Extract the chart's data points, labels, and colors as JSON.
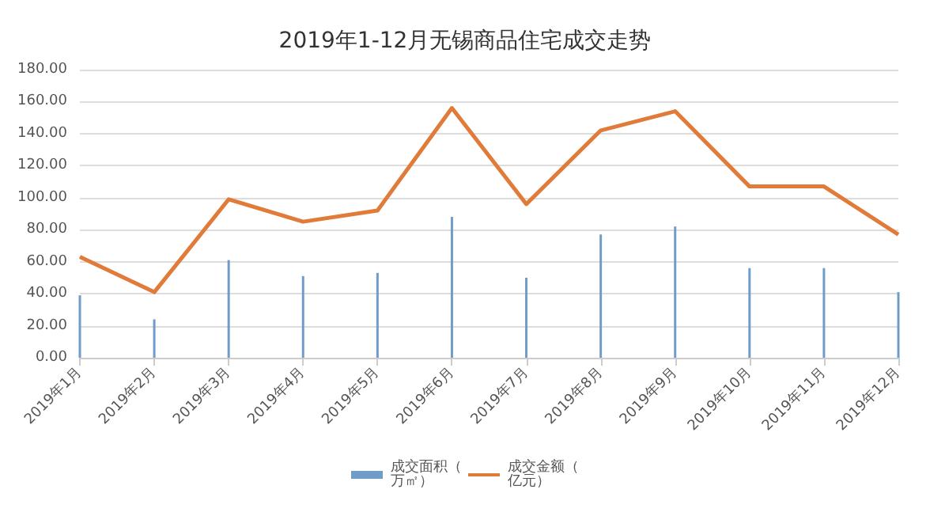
{
  "chart_data": {
    "type": "bar",
    "title": "2019年1-12月无锡商品住宅成交走势",
    "categories": [
      "2019年1月",
      "2019年2月",
      "2019年3月",
      "2019年4月",
      "2019年5月",
      "2019年6月",
      "2019年7月",
      "2019年8月",
      "2019年9月",
      "2019年10月",
      "2019年11月",
      "2019年12月"
    ],
    "series": [
      {
        "name": "成交面积（万㎡）",
        "color": "#6f9cc9",
        "values": [
          39,
          24,
          61,
          51,
          53,
          88,
          50,
          77,
          82,
          56,
          56,
          41
        ]
      },
      {
        "name": "成交金额（亿元）",
        "type": "line",
        "color": "#e07b39",
        "values": [
          63,
          41,
          99,
          85,
          92,
          156,
          96,
          142,
          154,
          107,
          107,
          77
        ]
      }
    ],
    "ylim": [
      0,
      180
    ],
    "yticks": [
      {
        "value": 0,
        "label": "0.00"
      },
      {
        "value": 20,
        "label": "20.00"
      },
      {
        "value": 40,
        "label": "40.00"
      },
      {
        "value": 60,
        "label": "60.00"
      },
      {
        "value": 80,
        "label": "80.00"
      },
      {
        "value": 100,
        "label": "100.00"
      },
      {
        "value": 120,
        "label": "120.00"
      },
      {
        "value": 140,
        "label": "140.00"
      },
      {
        "value": 160,
        "label": "160.00"
      },
      {
        "value": 180,
        "label": "180.00"
      }
    ],
    "grid": "y",
    "legend": "bottom",
    "marker": "none",
    "line_style": "solid"
  }
}
